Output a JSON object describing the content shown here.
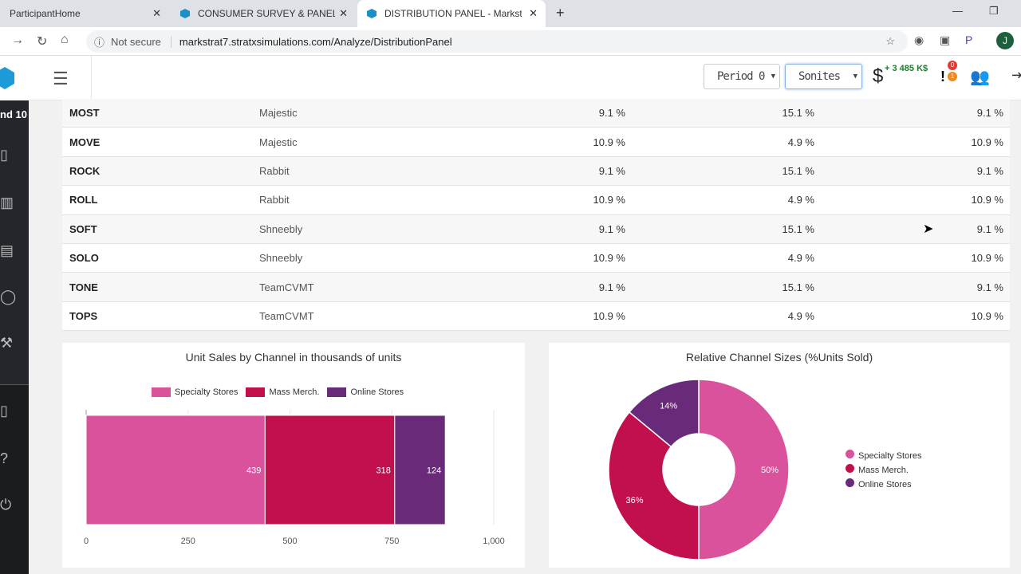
{
  "browser": {
    "tabs": [
      {
        "title": "ParticipantHome"
      },
      {
        "title": "CONSUMER SURVEY & PANEL - "
      },
      {
        "title": "DISTRIBUTION PANEL - Markstra"
      }
    ],
    "security": "Not secure",
    "url": "markstrat7.stratxsimulations.com/Analyze/DistributionPanel",
    "profile_initial": "J"
  },
  "sidebar": {
    "round_label": "nd 10",
    "icons": [
      "book-icon",
      "building-icon",
      "newspaper-icon",
      "chat-icon",
      "tools-icon",
      "book-icon",
      "help-icon",
      "power-icon"
    ]
  },
  "header": {
    "period": "Period 0",
    "market": "Sonites",
    "budget": "+ 3 485 K$",
    "badge_red": "0",
    "badge_orange": "1"
  },
  "table": {
    "rows": [
      [
        "MOST",
        "Majestic",
        "9.1 %",
        "15.1 %",
        "9.1 %"
      ],
      [
        "MOVE",
        "Majestic",
        "10.9 %",
        "4.9 %",
        "10.9 %"
      ],
      [
        "ROCK",
        "Rabbit",
        "9.1 %",
        "15.1 %",
        "9.1 %"
      ],
      [
        "ROLL",
        "Rabbit",
        "10.9 %",
        "4.9 %",
        "10.9 %"
      ],
      [
        "SOFT",
        "Shneebly",
        "9.1 %",
        "15.1 %",
        "9.1 %"
      ],
      [
        "SOLO",
        "Shneebly",
        "10.9 %",
        "4.9 %",
        "10.9 %"
      ],
      [
        "TONE",
        "TeamCVMT",
        "9.1 %",
        "15.1 %",
        "9.1 %"
      ],
      [
        "TOPS",
        "TeamCVMT",
        "10.9 %",
        "4.9 %",
        "10.9 %"
      ]
    ]
  },
  "chart_data": [
    {
      "type": "bar",
      "orientation": "horizontal",
      "stacked": true,
      "title": "Unit Sales by Channel in thousands of units",
      "series": [
        {
          "name": "Specialty Stores",
          "values": [
            439
          ]
        },
        {
          "name": "Mass Merch.",
          "values": [
            318
          ]
        },
        {
          "name": "Online Stores",
          "values": [
            124
          ]
        }
      ],
      "xlim": [
        0,
        1000
      ],
      "xticks": [
        "0",
        "250",
        "500",
        "750",
        "1,000"
      ],
      "xtick_values": [
        0,
        250,
        500,
        750,
        1000
      ],
      "colors": [
        "#d9529b",
        "#c2104f",
        "#6a2a7a"
      ],
      "legend": "top",
      "grid": true
    },
    {
      "type": "pie",
      "donut": true,
      "title": "Relative Channel Sizes (%Units Sold)",
      "labels": [
        "Specialty Stores",
        "Mass Merch.",
        "Online Stores"
      ],
      "values": [
        50,
        36,
        14
      ],
      "value_labels": [
        "50%",
        "36%",
        "14%"
      ],
      "colors": [
        "#d9529b",
        "#c2104f",
        "#6a2a7a"
      ],
      "legend": "right"
    }
  ]
}
